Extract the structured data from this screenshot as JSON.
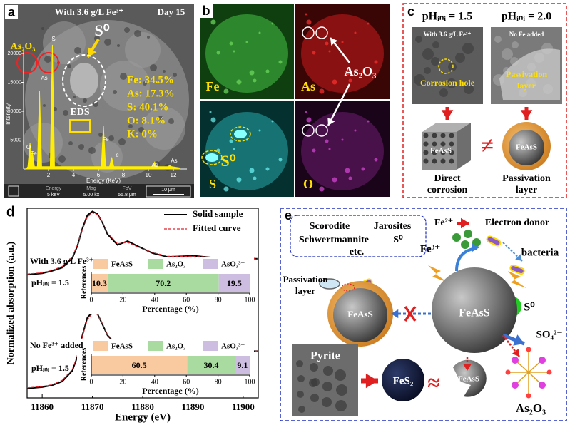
{
  "panel_a": {
    "label": "a",
    "title": "With 3.6 g/L Fe³⁺",
    "day": "Day 15",
    "s0": "S⁰",
    "as2o3": "As₂O₃",
    "eds": "EDS",
    "composition": [
      "Fe: 34.5%",
      "As: 17.3%",
      "S: 40.1%",
      "O: 8.1%",
      "K: 0%"
    ],
    "y_label": "Intensity",
    "x_label": "Energy (KeV)",
    "yticks": [
      5000,
      10000,
      15000,
      20000
    ],
    "xticks": [
      2,
      4,
      6,
      8,
      10,
      12
    ],
    "peak_labels": [
      "O",
      "Fe",
      "As",
      "S",
      "Fe",
      "Fe",
      "As",
      "As"
    ],
    "footer": {
      "energy": "Energy",
      "energy_value": "5 keV",
      "mag": "Mag",
      "mag_value": "5.00 kx",
      "fov": "FoV",
      "fov_value": "55.8 μm",
      "scale": "10 μm"
    }
  },
  "panel_b": {
    "label": "b",
    "maps": [
      "Fe",
      "As",
      "S",
      "O"
    ],
    "as2o3": "As₂O₃",
    "s0": "S⁰"
  },
  "panel_c": {
    "label": "c",
    "conditions": [
      "pHᵢₙᵢ = 1.5",
      "pHᵢₙᵢ = 2.0"
    ],
    "images": [
      "With 3.6 g/L Fe³⁺",
      "No Fe added"
    ],
    "corrosion_hole": "Corrosion hole",
    "passivation_image": [
      "Passivation",
      "layer"
    ],
    "cube": "FeAsS",
    "sphere": "FeAsS",
    "not_equal": "≠",
    "outcomes": [
      [
        "Direct",
        "corrosion"
      ],
      [
        "Passivation",
        "layer"
      ]
    ]
  },
  "panel_d": {
    "label": "d"
  },
  "chart_data": [
    {
      "type": "line",
      "x_label": "Energy (eV)",
      "y_label": "Normalized absorption (a.u.)",
      "legend": "upper right",
      "annotations": [
        "With 3.6 g/L Fe³⁺",
        "pHᵢₙᵢ = 1.5",
        "No Fe³⁺ added",
        "pHᵢₙᵢ = 1.5"
      ],
      "x": [
        11857,
        11860,
        11862,
        11864,
        11866,
        11867,
        11868,
        11869,
        11870,
        11871,
        11872,
        11873,
        11875,
        11877,
        11879,
        11882,
        11885,
        11890,
        11895,
        11900,
        11903
      ],
      "xlim": [
        11857,
        11903
      ],
      "xticks": [
        11860,
        11870,
        11880,
        11890,
        11900
      ],
      "ylim": [
        0,
        3
      ],
      "series": [
        {
          "name": "Solid sample",
          "color": "#000000",
          "values": [
            1.95,
            1.97,
            2.01,
            2.06,
            2.21,
            2.4,
            2.68,
            2.89,
            2.95,
            2.91,
            2.77,
            2.59,
            2.42,
            2.48,
            2.4,
            2.29,
            2.23,
            2.25,
            2.21,
            2.21,
            2.2
          ]
        },
        {
          "name": "Fitted curve",
          "color": "#e0202a",
          "dash": true,
          "values": [
            1.96,
            1.98,
            2.02,
            2.08,
            2.23,
            2.42,
            2.66,
            2.86,
            2.93,
            2.9,
            2.78,
            2.61,
            2.44,
            2.46,
            2.39,
            2.3,
            2.24,
            2.24,
            2.22,
            2.21,
            2.2
          ]
        },
        {
          "color": "#000000",
          "values": [
            0.15,
            0.17,
            0.2,
            0.26,
            0.43,
            0.65,
            0.99,
            1.27,
            1.36,
            1.33,
            1.16,
            0.99,
            0.82,
            0.85,
            0.79,
            0.74,
            0.74,
            0.77,
            0.74,
            0.74,
            0.74
          ]
        },
        {
          "color": "#e0202a",
          "dash": true,
          "values": [
            0.16,
            0.18,
            0.21,
            0.28,
            0.45,
            0.66,
            0.97,
            1.24,
            1.34,
            1.32,
            1.17,
            1.0,
            0.84,
            0.84,
            0.8,
            0.75,
            0.74,
            0.76,
            0.75,
            0.74,
            0.74
          ]
        }
      ]
    },
    {
      "type": "bar",
      "orientation": "horizontal",
      "stacked": true,
      "y_label": "References",
      "x_label": "Percentage (%)",
      "xlim": [
        0,
        100
      ],
      "xticks": [
        0,
        20,
        40,
        60,
        80,
        100
      ],
      "series": [
        {
          "name": "FeAsS",
          "color": "#f9c9a0",
          "values": [
            10.3
          ]
        },
        {
          "name": "As₂O₃",
          "color": "#a9dba0",
          "values": [
            70.2
          ]
        },
        {
          "name": "AsO₃³⁻",
          "color": "#cdbde0",
          "values": [
            19.5
          ]
        }
      ]
    },
    {
      "type": "bar",
      "orientation": "horizontal",
      "stacked": true,
      "y_label": "References",
      "x_label": "Percentage (%)",
      "xlim": [
        0,
        100
      ],
      "xticks": [
        0,
        20,
        40,
        60,
        80,
        100
      ],
      "series": [
        {
          "name": "FeAsS",
          "color": "#f9c9a0",
          "values": [
            60.5
          ]
        },
        {
          "name": "As₂O₃",
          "color": "#a9dba0",
          "values": [
            30.4
          ]
        },
        {
          "name": "AsO₃³⁻",
          "color": "#cdbde0",
          "values": [
            9.1
          ]
        }
      ]
    }
  ],
  "panel_e": {
    "label": "e",
    "minerals": [
      "Scorodite",
      "Jarosites",
      "Schwertmannite",
      "S⁰",
      "etc."
    ],
    "fe2": "Fe²⁺",
    "electron_donor": "Electron donor",
    "fe3": "Fe³⁺",
    "bacteria": "bacteria",
    "passivation": [
      "Passivation",
      "layer"
    ],
    "passivated": "FeAsS",
    "core": "FeAsS",
    "s0": "S⁰",
    "so4": "SO₄²⁻",
    "pyrite": "Pyrite",
    "fes2": "FeS₂",
    "approx": "≈",
    "fragment": "FeAsS",
    "as2o3": "As₂O₃"
  }
}
